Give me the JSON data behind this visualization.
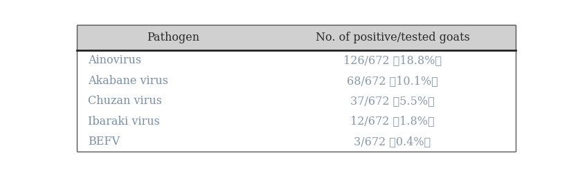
{
  "header": [
    "Pathogen",
    "No. of positive/tested goats"
  ],
  "rows": [
    [
      "Ainovirus",
      "126/672 （18.8%）"
    ],
    [
      "Akabane virus",
      "68/672 （10.1%）"
    ],
    [
      "Chuzan virus",
      "37/672 （5.5%）"
    ],
    [
      "Ibaraki virus",
      "12/672 （1.8%）"
    ],
    [
      "BEFV",
      "3/672 （0.4%）"
    ]
  ],
  "header_bg": "#d0d0d0",
  "header_text_color": "#2a2a2a",
  "data_text_color_left": "#7a8faa",
  "data_text_color_right": "#8899aa",
  "bg_color": "#ffffff",
  "outer_border_color": "#555555",
  "header_bottom_line_color": "#222222",
  "top_border_color": "#555555",
  "bottom_border_color": "#555555",
  "fig_width": 8.35,
  "fig_height": 2.54,
  "font_size": 11.5
}
